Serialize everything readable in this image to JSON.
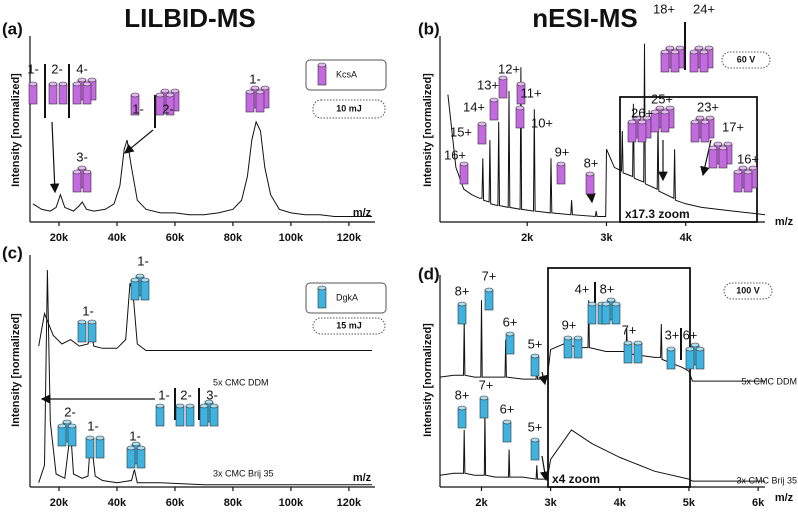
{
  "chart_data": [
    {
      "type": "line",
      "panel": "(a)",
      "title": "LILBID-MS",
      "ylabel": "Intensity [normalized]",
      "xlabel": "m/z",
      "label": "KcsA",
      "condition": "10 mJ",
      "xlim": [
        10000,
        129000
      ],
      "ylim": [
        0,
        1
      ],
      "xticks": [
        {
          "value": 20000,
          "label": "20k"
        },
        {
          "value": 40000,
          "label": "40k"
        },
        {
          "value": 60000,
          "label": "60k"
        },
        {
          "value": 80000,
          "label": "80k"
        },
        {
          "value": 100000,
          "label": "100k"
        },
        {
          "value": 120000,
          "label": "120k"
        }
      ],
      "annotations": [
        "1-",
        "2-",
        "4-",
        "3-",
        "1-",
        "2-",
        "1-"
      ],
      "series": [
        {
          "color": "#111111",
          "x": [
            11000,
            14000,
            17000,
            19000,
            20500,
            22000,
            25000,
            27000,
            28000,
            29500,
            32000,
            36000,
            39000,
            41000,
            42500,
            43500,
            45000,
            47000,
            50000,
            55000,
            60000,
            65000,
            70000,
            75000,
            80000,
            83000,
            85000,
            86500,
            88000,
            89500,
            91000,
            93000,
            96000,
            100000,
            105000,
            110000,
            115000,
            120000,
            128000
          ],
          "values": [
            0.1,
            0.07,
            0.06,
            0.08,
            0.15,
            0.08,
            0.06,
            0.09,
            0.11,
            0.07,
            0.06,
            0.07,
            0.1,
            0.2,
            0.4,
            0.45,
            0.3,
            0.12,
            0.07,
            0.05,
            0.05,
            0.04,
            0.04,
            0.05,
            0.07,
            0.12,
            0.25,
            0.45,
            0.55,
            0.5,
            0.3,
            0.15,
            0.07,
            0.05,
            0.04,
            0.04,
            0.03,
            0.03,
            0.03
          ]
        }
      ]
    },
    {
      "type": "line",
      "panel": "(b)",
      "title": "nESI-MS",
      "ylabel": "Intensity [normalized]",
      "xlabel": "m/z",
      "condition": "60 V",
      "zoom_label": "x17.3 zoom",
      "xlim": [
        900,
        5000
      ],
      "ylim": [
        0,
        1
      ],
      "xticks": [
        {
          "value": 2000,
          "label": "2k"
        },
        {
          "value": 3000,
          "label": "3k"
        },
        {
          "value": 4000,
          "label": "4k"
        }
      ],
      "annotations": [
        "16+",
        "15+",
        "14+",
        "13+",
        "12+",
        "11+",
        "10+",
        "9+",
        "8+",
        "18+",
        "24+",
        "26+",
        "25+",
        "23+",
        "17+",
        "16+"
      ],
      "series": [
        {
          "color": "#111111",
          "x": [
            1000,
            1100,
            1200,
            1300,
            1400,
            1430,
            1440,
            1450,
            1520,
            1530,
            1540,
            1630,
            1640,
            1650,
            1760,
            1770,
            1780,
            1910,
            1920,
            1930,
            2080,
            2090,
            2100,
            2290,
            2300,
            2310,
            2550,
            2560,
            2570,
            2860,
            2870,
            2880,
            2990,
            3000,
            3100,
            3190,
            3200,
            3210,
            3330,
            3340,
            3350,
            3470,
            3480,
            3490,
            3640,
            3650,
            3660,
            3850,
            3860,
            3870,
            4000,
            4200,
            4400,
            4600,
            4800,
            5000
          ],
          "values": [
            0.7,
            0.3,
            0.18,
            0.15,
            0.13,
            0.13,
            0.35,
            0.12,
            0.11,
            0.45,
            0.1,
            0.09,
            0.55,
            0.09,
            0.08,
            0.72,
            0.08,
            0.07,
            0.85,
            0.07,
            0.06,
            0.62,
            0.06,
            0.05,
            0.35,
            0.05,
            0.04,
            0.12,
            0.04,
            0.03,
            0.06,
            0.03,
            0.03,
            0.4,
            0.3,
            0.28,
            0.5,
            0.27,
            0.25,
            0.65,
            0.24,
            0.22,
            0.98,
            0.21,
            0.18,
            0.55,
            0.17,
            0.13,
            0.4,
            0.12,
            0.1,
            0.08,
            0.07,
            0.06,
            0.05,
            0.04
          ]
        }
      ]
    },
    {
      "type": "line",
      "panel": "(c)",
      "ylabel": "Intensity [normalized]",
      "xlabel": "m/z",
      "label": "DgkA",
      "condition": "15 mJ",
      "xlim": [
        10000,
        129000
      ],
      "ylim": [
        0,
        1
      ],
      "xticks": [
        {
          "value": 20000,
          "label": "20k"
        },
        {
          "value": 40000,
          "label": "40k"
        },
        {
          "value": 60000,
          "label": "60k"
        },
        {
          "value": 80000,
          "label": "80k"
        },
        {
          "value": 100000,
          "label": "100k"
        },
        {
          "value": 120000,
          "label": "120k"
        }
      ],
      "annotations": [
        "1-",
        "1-",
        "2-",
        "1-",
        "1-",
        "1-",
        "2-",
        "3-"
      ],
      "series": [
        {
          "name": "5x CMC DDM",
          "color": "#111111",
          "x": [
            13000,
            15000,
            18000,
            21000,
            24000,
            27000,
            30000,
            31000,
            32000,
            35000,
            40000,
            43000,
            44500,
            45500,
            47000,
            50000,
            60000,
            70000,
            80000,
            90000,
            100000,
            110000,
            120000,
            128000
          ],
          "values": [
            0.05,
            0.2,
            0.1,
            0.06,
            0.08,
            0.05,
            0.06,
            0.12,
            0.05,
            0.04,
            0.04,
            0.08,
            0.34,
            0.3,
            0.06,
            0.03,
            0.03,
            0.03,
            0.03,
            0.03,
            0.03,
            0.03,
            0.03,
            0.03
          ]
        },
        {
          "name": "3x CMC Brij 35",
          "color": "#111111",
          "x": [
            13000,
            15000,
            16000,
            17000,
            19000,
            22000,
            24000,
            25000,
            28000,
            30000,
            31000,
            32500,
            35000,
            40000,
            45000,
            46000,
            47000,
            55000,
            70000,
            90000,
            110000,
            128000
          ],
          "values": [
            0.02,
            0.1,
            1.0,
            0.3,
            0.06,
            0.04,
            0.26,
            0.06,
            0.04,
            0.05,
            0.23,
            0.05,
            0.03,
            0.02,
            0.03,
            0.08,
            0.02,
            0.02,
            0.01,
            0.01,
            0.01,
            0.01
          ]
        }
      ]
    },
    {
      "type": "line",
      "panel": "(d)",
      "ylabel": "Intensity [normalized]",
      "xlabel": "m/z",
      "condition": "100 V",
      "zoom_label": "x4 zoom",
      "xlim": [
        1400,
        6100
      ],
      "ylim": [
        0,
        1
      ],
      "xticks": [
        {
          "value": 2000,
          "label": "2k"
        },
        {
          "value": 3000,
          "label": "3k"
        },
        {
          "value": 4000,
          "label": "4k"
        },
        {
          "value": 5000,
          "label": "5k"
        },
        {
          "value": 6000,
          "label": "6k"
        }
      ],
      "annotations": [
        "8+",
        "7+",
        "6+",
        "5+",
        "4+",
        "8+",
        "9+",
        "7+",
        "3+",
        "6+",
        "8+",
        "7+",
        "6+",
        "5+"
      ],
      "series": [
        {
          "name": "5x CMC DDM",
          "color": "#111111",
          "x": [
            1400,
            1600,
            1740,
            1750,
            1760,
            1900,
            1990,
            2000,
            2010,
            2200,
            2340,
            2350,
            2360,
            2600,
            2790,
            2800,
            2810,
            2950,
            3000,
            3200,
            3400,
            3540,
            3550,
            3560,
            3800,
            4090,
            4100,
            4110,
            4500,
            4590,
            4600,
            4610,
            4900,
            5000,
            5050,
            6100
          ],
          "values": [
            0.05,
            0.06,
            0.06,
            0.34,
            0.06,
            0.05,
            0.05,
            0.44,
            0.05,
            0.05,
            0.05,
            0.24,
            0.05,
            0.04,
            0.04,
            0.14,
            0.04,
            0.04,
            0.19,
            0.22,
            0.2,
            0.2,
            0.44,
            0.2,
            0.18,
            0.18,
            0.3,
            0.17,
            0.15,
            0.15,
            0.32,
            0.14,
            0.1,
            0.08,
            0.03,
            0.03
          ]
        },
        {
          "name": "3x CMC Brij 35",
          "color": "#111111",
          "x": [
            1400,
            1600,
            1740,
            1750,
            1760,
            1900,
            2040,
            2050,
            2060,
            2200,
            2390,
            2400,
            2410,
            2600,
            2790,
            2800,
            2810,
            2950,
            3000,
            3300,
            3600,
            4000,
            4500,
            5000,
            5050,
            6100
          ],
          "values": [
            0.06,
            0.07,
            0.07,
            0.29,
            0.07,
            0.06,
            0.06,
            0.39,
            0.06,
            0.05,
            0.05,
            0.19,
            0.05,
            0.05,
            0.04,
            0.11,
            0.04,
            0.04,
            0.14,
            0.29,
            0.22,
            0.15,
            0.08,
            0.04,
            0.03,
            0.03
          ]
        }
      ]
    }
  ]
}
